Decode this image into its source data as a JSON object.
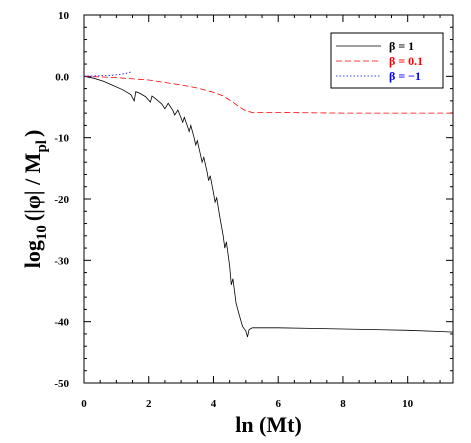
{
  "chart_data": {
    "type": "line",
    "title": "",
    "xlabel": "ln (Mt)",
    "ylabel": "log10 (|φ| / Mpl)",
    "ylabel_parts": {
      "base": "log",
      "base_sub": "10",
      "middle": "(|φ| / M",
      "end_sub": "pl",
      "close": ")"
    },
    "xlim": [
      0,
      11.4
    ],
    "ylim": [
      -50,
      10
    ],
    "xticks": [
      0,
      2,
      4,
      6,
      8,
      10
    ],
    "yticks": [
      10,
      0,
      -10,
      -20,
      -30,
      -40,
      -50
    ],
    "xtick_labels": [
      "0",
      "2",
      "4",
      "6",
      "8",
      "10"
    ],
    "ytick_labels": [
      "10",
      "0.0",
      "-10",
      "-20",
      "-30",
      "-40",
      "-50"
    ],
    "legend_position": "top-right",
    "grid": false,
    "series": [
      {
        "name": "β = 1",
        "color": "#000000",
        "dash": "solid",
        "x": [
          0,
          0.3,
          0.6,
          0.9,
          1.2,
          1.45,
          1.55,
          1.6,
          1.7,
          1.9,
          2.05,
          2.1,
          2.2,
          2.4,
          2.5,
          2.6,
          2.75,
          2.8,
          2.9,
          3.0,
          3.05,
          3.1,
          3.2,
          3.25,
          3.3,
          3.4,
          3.45,
          3.5,
          3.6,
          3.65,
          3.7,
          3.8,
          3.85,
          3.9,
          4.0,
          4.05,
          4.1,
          4.2,
          4.3,
          4.35,
          4.4,
          4.5,
          4.55,
          4.6,
          4.7,
          4.8,
          4.9,
          5.0,
          5.05,
          5.1,
          5.2,
          5.4,
          6.0,
          7.0,
          8.0,
          9.0,
          10.0,
          11.0,
          11.4
        ],
        "y": [
          0,
          -0.3,
          -0.8,
          -1.5,
          -2.2,
          -3.0,
          -4.0,
          -2.5,
          -2.7,
          -3.3,
          -4.2,
          -3.2,
          -3.6,
          -4.5,
          -5.3,
          -4.4,
          -5.6,
          -6.3,
          -5.5,
          -6.8,
          -7.5,
          -6.7,
          -8.2,
          -9.0,
          -8.0,
          -10.0,
          -11.2,
          -10.5,
          -12.8,
          -14.0,
          -13.2,
          -15.5,
          -17.0,
          -16.2,
          -19.0,
          -20.5,
          -19.8,
          -23.0,
          -26.0,
          -28.0,
          -27.0,
          -31.0,
          -34.0,
          -33.0,
          -37.0,
          -39.0,
          -40.8,
          -41.5,
          -42.5,
          -41.3,
          -41.0,
          -41.0,
          -41.0,
          -41.1,
          -41.2,
          -41.3,
          -41.4,
          -41.6,
          -41.7
        ]
      },
      {
        "name": "β = 0.1",
        "color": "#ff0000",
        "dash": "dashed",
        "x": [
          0,
          1,
          2,
          2.5,
          3,
          3.5,
          4,
          4.3,
          4.6,
          4.8,
          5.0,
          5.2,
          6,
          8,
          10,
          11.4
        ],
        "y": [
          0,
          -0.2,
          -0.6,
          -1.0,
          -1.4,
          -1.9,
          -2.6,
          -3.2,
          -4.2,
          -5.0,
          -5.6,
          -5.9,
          -5.9,
          -6.0,
          -6.0,
          -6.0
        ]
      },
      {
        "name": "β = −1",
        "color": "#0000ff",
        "dash": "dotted",
        "x": [
          0,
          0.3,
          0.6,
          0.9,
          1.1,
          1.3,
          1.45
        ],
        "y": [
          0,
          0.05,
          0.1,
          0.2,
          0.3,
          0.5,
          0.7
        ]
      }
    ]
  }
}
